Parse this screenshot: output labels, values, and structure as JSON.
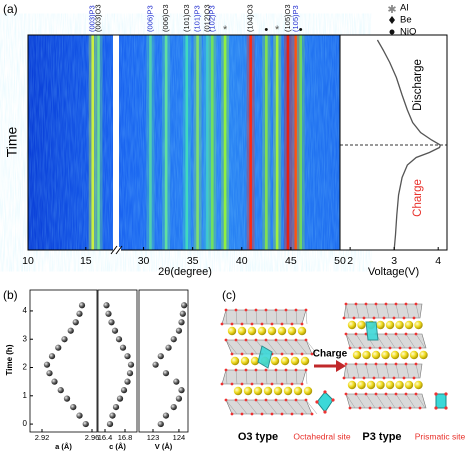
{
  "panel_labels": [
    "(a)",
    "(b)",
    "(c)"
  ],
  "chart_data": [
    {
      "type": "heatmap",
      "ylabel": "Time",
      "xlabel": "2θ(degree)",
      "xlim": [
        10,
        50
      ],
      "x_break": [
        17.7,
        27.5
      ],
      "xticks": [
        10,
        15,
        30,
        35,
        40,
        45,
        50
      ],
      "ylim": [
        0,
        4.3
      ],
      "peaks": [
        {
          "label": "(003)P3",
          "label_color": "#2430d0",
          "x": 15.6,
          "color": "#c8f040"
        },
        {
          "label": "(003)O3",
          "label_color": "#111111",
          "x": 16.1,
          "color": "#70e090"
        },
        {
          "label": "(006)P3",
          "label_color": "#2430d0",
          "x": 30.7,
          "color": "#50d0b0"
        },
        {
          "label": "(006)O3",
          "label_color": "#111111",
          "x": 32.3,
          "color": "#60e0a0"
        },
        {
          "label": "(101)O3",
          "label_color": "#111111",
          "x": 34.4,
          "color": "#40d8c0"
        },
        {
          "label": "(101)P3",
          "label_color": "#2430d0",
          "x": 35.5,
          "color": "#80e070"
        },
        {
          "label": "(012)O3",
          "label_color": "#111111",
          "x": 36.5,
          "color": "#40c8d0"
        },
        {
          "label": "(102)P3",
          "label_color": "#2430d0",
          "x": 37.0,
          "color": "#70e060"
        },
        {
          "label": "*",
          "label_color": "#555555",
          "x": 38.3,
          "color": "#90f040"
        },
        {
          "label": "(104)O3",
          "label_color": "#111111",
          "x": 40.9,
          "color": "#ff2a10"
        },
        {
          "label": "•",
          "label_color": "#111111",
          "x": 42.5,
          "color": "#80e050"
        },
        {
          "label": "*",
          "label_color": "#555555",
          "x": 43.6,
          "color": "#a0f040"
        },
        {
          "label": "(105)O3",
          "label_color": "#111111",
          "x": 44.7,
          "color": "#e82010"
        },
        {
          "label": "(105)P3",
          "label_color": "#2430d0",
          "x": 45.5,
          "color": "#ff5010"
        },
        {
          "label": "•",
          "label_color": "#111111",
          "x": 46.0,
          "color": "#70d860"
        }
      ],
      "legend": [
        "Al",
        "Be",
        "NiO"
      ]
    },
    {
      "type": "line",
      "xlabel": "Voltage(V)",
      "xlim": [
        1.77,
        4.2
      ],
      "xticks": [
        2,
        3,
        4
      ],
      "ylim": [
        0,
        4.3
      ],
      "series": [
        {
          "color": "#555555",
          "x": [
            3.0,
            3.03,
            3.06,
            3.1,
            3.18,
            3.3,
            3.5,
            3.8,
            4.03,
            4.05,
            3.85,
            3.6,
            3.42,
            3.3,
            3.18,
            3.05,
            2.9,
            2.75,
            2.62
          ],
          "y": [
            0,
            0.3,
            0.7,
            1.1,
            1.45,
            1.7,
            1.85,
            1.95,
            2.05,
            2.1,
            2.2,
            2.35,
            2.55,
            2.8,
            3.1,
            3.45,
            3.75,
            4.0,
            4.2
          ]
        }
      ],
      "hline": 2.1,
      "annotations": [
        {
          "text": "Discharge",
          "color": "#000000"
        },
        {
          "text": "Charge",
          "color": "#e8302a"
        }
      ]
    },
    {
      "type": "scatter",
      "ylabel": "Time (h)",
      "xlabel": "a (Å)",
      "xlim": [
        2.9104,
        2.964
      ],
      "xticks": [
        2.92,
        2.96
      ],
      "ylim": [
        -0.28,
        4.74
      ],
      "yticks": [
        0,
        1,
        2,
        3,
        4
      ],
      "x": [
        2.955,
        2.95,
        2.945,
        2.94,
        2.935,
        2.93,
        2.926,
        2.924,
        2.928,
        2.933,
        2.938,
        2.943,
        2.947,
        2.95,
        2.952
      ],
      "y": [
        0,
        0.3,
        0.6,
        0.9,
        1.2,
        1.5,
        1.8,
        2.1,
        2.4,
        2.7,
        3.0,
        3.3,
        3.6,
        3.9,
        4.2
      ]
    },
    {
      "type": "scatter",
      "xlabel": "c (Å)",
      "xlim": [
        16.26,
        17.04
      ],
      "xticks": [
        16.4,
        16.8
      ],
      "ylim": [
        -0.28,
        4.74
      ],
      "x": [
        16.5,
        16.55,
        16.62,
        16.7,
        16.78,
        16.85,
        16.9,
        16.92,
        16.85,
        16.76,
        16.68,
        16.6,
        16.53,
        16.47,
        16.43
      ],
      "y": [
        0,
        0.3,
        0.6,
        0.9,
        1.2,
        1.5,
        1.8,
        2.1,
        2.4,
        2.7,
        3.0,
        3.3,
        3.6,
        3.9,
        4.2
      ]
    },
    {
      "type": "scatter",
      "xlabel": "V (Å)",
      "xlim": [
        122.46,
        124.35
      ],
      "xticks": [
        123,
        124
      ],
      "ylim": [
        -0.28,
        4.74
      ],
      "x": [
        123.3,
        123.5,
        123.8,
        124.0,
        124.1,
        123.9,
        123.5,
        123.1,
        123.3,
        123.6,
        123.8,
        124.0,
        124.1,
        124.15,
        124.2
      ],
      "y": [
        0,
        0.3,
        0.6,
        0.9,
        1.2,
        1.5,
        1.8,
        2.1,
        2.4,
        2.7,
        3.0,
        3.3,
        3.6,
        3.9,
        4.2
      ]
    }
  ],
  "diagram": {
    "arrow_label": "Charge",
    "structures": [
      {
        "label": "O3 type",
        "site_label": "Octahedral site"
      },
      {
        "label": "P3 type",
        "site_label": "Prismatic site"
      }
    ]
  }
}
